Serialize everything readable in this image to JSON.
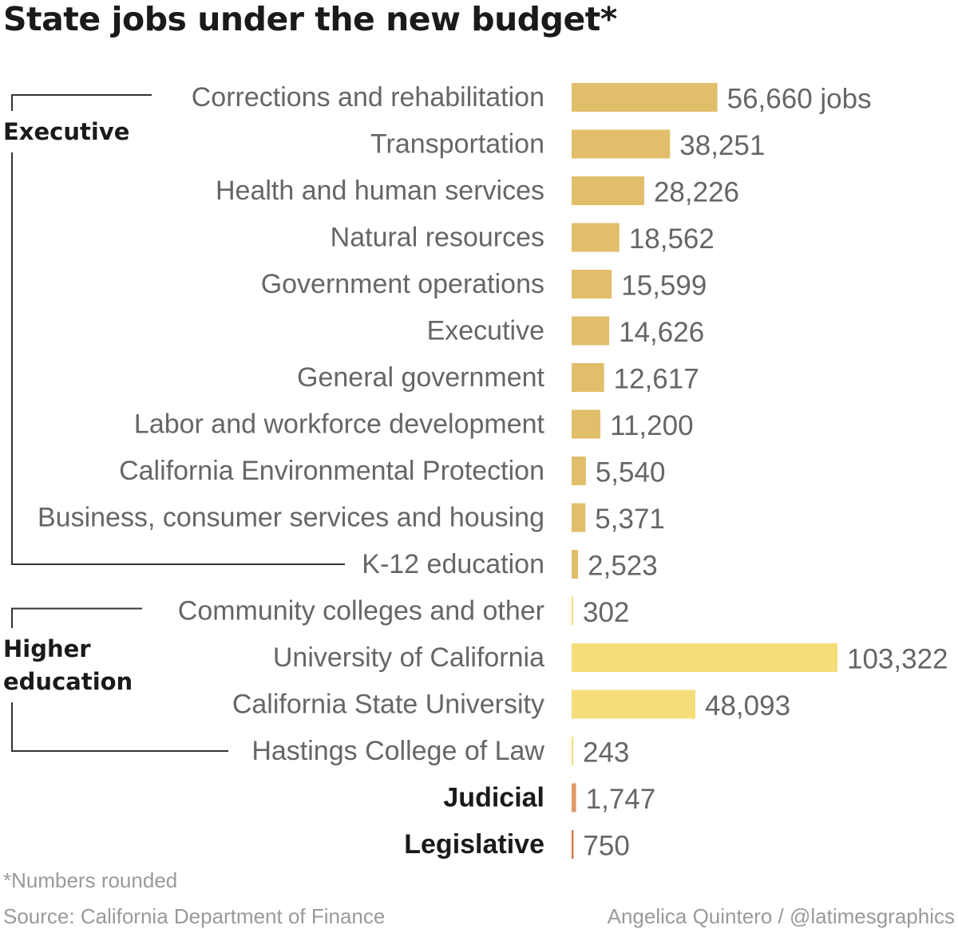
{
  "title": "State jobs under the new budget*",
  "footnote": "*Numbers rounded",
  "source": "Source: California Department of Finance",
  "credit": "Angelica Quintero / @latimesgraphics",
  "colors": {
    "executive": "#E1BE6A",
    "higher_education": "#F5DE7A",
    "judicial": "#DE9A6A",
    "legislative": "#D9773F"
  },
  "chart_data": {
    "type": "bar",
    "orientation": "horizontal",
    "title": "State jobs under the new budget*",
    "xlim": [
      0,
      103322
    ],
    "grid": false,
    "groups": [
      {
        "name": "Executive",
        "color": "#E1BE6A",
        "items": [
          {
            "label": "Corrections and rehabilitation",
            "value": 56660,
            "value_label": "56,660 jobs"
          },
          {
            "label": "Transportation",
            "value": 38251,
            "value_label": "38,251"
          },
          {
            "label": "Health and human services",
            "value": 28226,
            "value_label": "28,226"
          },
          {
            "label": "Natural resources",
            "value": 18562,
            "value_label": "18,562"
          },
          {
            "label": "Government operations",
            "value": 15599,
            "value_label": "15,599"
          },
          {
            "label": "Executive",
            "value": 14626,
            "value_label": "14,626"
          },
          {
            "label": "General government",
            "value": 12617,
            "value_label": "12,617"
          },
          {
            "label": "Labor and workforce development",
            "value": 11200,
            "value_label": "11,200"
          },
          {
            "label": "California Environmental Protection",
            "value": 5540,
            "value_label": "5,540"
          },
          {
            "label": "Business, consumer services and housing",
            "value": 5371,
            "value_label": "5,371"
          },
          {
            "label": "K-12 education",
            "value": 2523,
            "value_label": "2,523"
          }
        ]
      },
      {
        "name": "Higher education",
        "color": "#F5DE7A",
        "items": [
          {
            "label": "Community colleges and other",
            "value": 302,
            "value_label": "302"
          },
          {
            "label": "University of California",
            "value": 103322,
            "value_label": "103,322"
          },
          {
            "label": "California State University",
            "value": 48093,
            "value_label": "48,093"
          },
          {
            "label": "Hastings College of Law",
            "value": 243,
            "value_label": "243"
          }
        ]
      },
      {
        "name": "",
        "color": "#DE9A6A",
        "items": [
          {
            "label": "Judicial",
            "value": 1747,
            "value_label": "1,747",
            "bold": true
          }
        ]
      },
      {
        "name": "",
        "color": "#D9773F",
        "items": [
          {
            "label": "Legislative",
            "value": 750,
            "value_label": "750",
            "bold": true
          }
        ]
      }
    ],
    "group_labels": [
      {
        "lines": [
          "Executive"
        ]
      },
      {
        "lines": [
          "Higher",
          "education"
        ]
      }
    ]
  }
}
